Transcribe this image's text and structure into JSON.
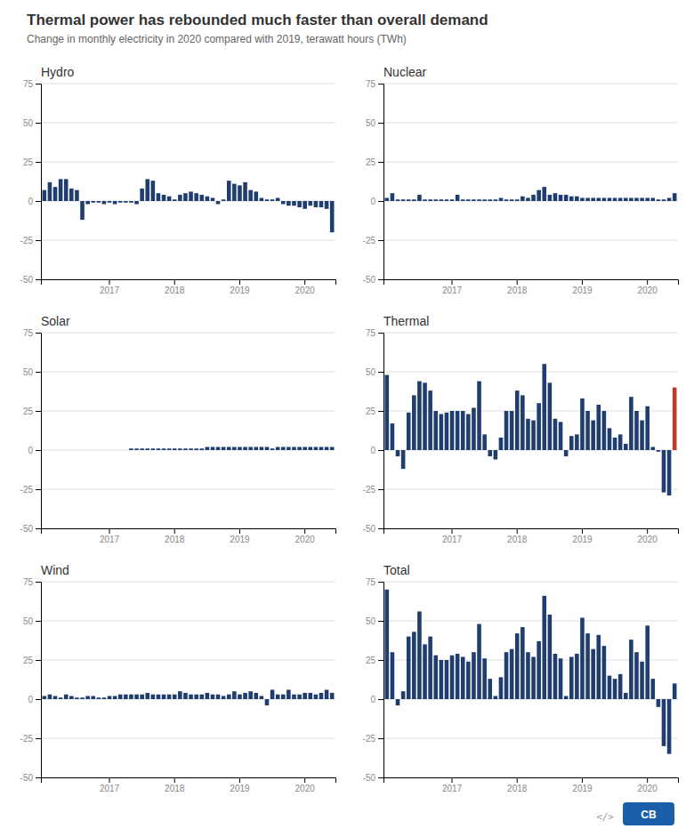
{
  "title": "Thermal power has rebounded much faster than overall demand",
  "subtitle": "Change in monthly electricity in 2020 compared with 2019, terawatt hours (TWh)",
  "annotations": [
    "</>",
    "CB"
  ],
  "chart_data": [
    {
      "type": "bar",
      "title": "Hydro",
      "categories": [
        null,
        null,
        null,
        null,
        null,
        null,
        null,
        null,
        null,
        null,
        null,
        null,
        "2017",
        null,
        null,
        null,
        null,
        null,
        null,
        null,
        null,
        null,
        null,
        null,
        "2018",
        null,
        null,
        null,
        null,
        null,
        null,
        null,
        null,
        null,
        null,
        null,
        "2019",
        null,
        null,
        null,
        null,
        null,
        null,
        null,
        null,
        null,
        null,
        null,
        "2020",
        null,
        null,
        null,
        null,
        null
      ],
      "values": [
        7,
        12,
        9,
        14,
        14,
        8,
        7,
        -12,
        -2,
        -1,
        -1,
        -2,
        -1,
        -2,
        -1,
        -1,
        -1,
        -2,
        8,
        14,
        13,
        5,
        4,
        3,
        1,
        4,
        5,
        6,
        5,
        4,
        3,
        2,
        -2,
        1,
        13,
        11,
        10,
        12,
        7,
        6,
        2,
        1,
        1,
        2,
        -2,
        -3,
        -3,
        -4,
        -5,
        -3,
        -4,
        -4,
        -5,
        -20
      ],
      "color": "#1f3d6e",
      "ylim": [
        -50,
        75
      ],
      "yticks": [
        -50,
        -25,
        0,
        25,
        50,
        75
      ],
      "grid": true
    },
    {
      "type": "bar",
      "title": "Nuclear",
      "categories": [
        null,
        null,
        null,
        null,
        null,
        null,
        null,
        null,
        null,
        null,
        null,
        null,
        "2017",
        null,
        null,
        null,
        null,
        null,
        null,
        null,
        null,
        null,
        null,
        null,
        "2018",
        null,
        null,
        null,
        null,
        null,
        null,
        null,
        null,
        null,
        null,
        null,
        "2019",
        null,
        null,
        null,
        null,
        null,
        null,
        null,
        null,
        null,
        null,
        null,
        "2020",
        null,
        null,
        null,
        null,
        null
      ],
      "values": [
        2,
        5,
        1,
        1,
        1,
        1,
        4,
        1,
        1,
        1,
        1,
        1,
        1,
        4,
        1,
        1,
        1,
        1,
        1,
        1,
        1,
        2,
        1,
        1,
        1,
        3,
        2,
        4,
        7,
        9,
        4,
        5,
        4,
        4,
        3,
        3,
        2,
        2,
        2,
        2,
        2,
        2,
        2,
        2,
        2,
        2,
        2,
        2,
        2,
        2,
        1,
        1,
        2,
        5
      ],
      "color": "#1f3d6e",
      "ylim": [
        -50,
        75
      ],
      "yticks": [
        -50,
        -25,
        0,
        25,
        50,
        75
      ],
      "grid": true
    },
    {
      "type": "bar",
      "title": "Solar",
      "categories": [
        null,
        null,
        null,
        null,
        null,
        null,
        null,
        null,
        null,
        null,
        null,
        null,
        "2017",
        null,
        null,
        null,
        null,
        null,
        null,
        null,
        null,
        null,
        null,
        null,
        "2018",
        null,
        null,
        null,
        null,
        null,
        null,
        null,
        null,
        null,
        null,
        null,
        "2019",
        null,
        null,
        null,
        null,
        null,
        null,
        null,
        null,
        null,
        null,
        null,
        "2020",
        null,
        null,
        null,
        null,
        null
      ],
      "values": [
        0,
        0,
        0,
        0,
        0,
        0,
        0,
        0,
        0,
        0,
        0,
        0,
        0,
        0,
        0,
        0,
        1,
        1,
        1,
        1,
        1,
        1,
        1,
        1,
        1,
        1,
        1,
        1,
        1,
        1,
        2,
        2,
        2,
        2,
        2,
        2,
        2,
        2,
        2,
        2,
        2,
        2,
        1,
        2,
        2,
        2,
        2,
        2,
        2,
        2,
        2,
        2,
        2,
        2
      ],
      "color": "#1f3d6e",
      "ylim": [
        -50,
        75
      ],
      "yticks": [
        -50,
        -25,
        0,
        25,
        50,
        75
      ],
      "grid": true
    },
    {
      "type": "bar",
      "title": "Thermal",
      "categories": [
        null,
        null,
        null,
        null,
        null,
        null,
        null,
        null,
        null,
        null,
        null,
        null,
        "2017",
        null,
        null,
        null,
        null,
        null,
        null,
        null,
        null,
        null,
        null,
        null,
        "2018",
        null,
        null,
        null,
        null,
        null,
        null,
        null,
        null,
        null,
        null,
        null,
        "2019",
        null,
        null,
        null,
        null,
        null,
        null,
        null,
        null,
        null,
        null,
        null,
        "2020",
        null,
        null,
        null,
        null,
        null
      ],
      "values": [
        48,
        17,
        -4,
        -12,
        24,
        35,
        44,
        43,
        38,
        25,
        23,
        24,
        25,
        25,
        25,
        23,
        27,
        44,
        10,
        -4,
        -6,
        8,
        25,
        25,
        38,
        35,
        20,
        19,
        30,
        55,
        43,
        20,
        18,
        -4,
        9,
        10,
        33,
        25,
        19,
        29,
        25,
        14,
        8,
        10,
        4,
        34,
        25,
        19,
        28,
        2,
        -1,
        -27,
        -29,
        40
      ],
      "colors": [
        "#1f3d6e",
        "#1f3d6e",
        "#1f3d6e",
        "#1f3d6e",
        "#1f3d6e",
        "#1f3d6e",
        "#1f3d6e",
        "#1f3d6e",
        "#1f3d6e",
        "#1f3d6e",
        "#1f3d6e",
        "#1f3d6e",
        "#1f3d6e",
        "#1f3d6e",
        "#1f3d6e",
        "#1f3d6e",
        "#1f3d6e",
        "#1f3d6e",
        "#1f3d6e",
        "#1f3d6e",
        "#1f3d6e",
        "#1f3d6e",
        "#1f3d6e",
        "#1f3d6e",
        "#1f3d6e",
        "#1f3d6e",
        "#1f3d6e",
        "#1f3d6e",
        "#1f3d6e",
        "#1f3d6e",
        "#1f3d6e",
        "#1f3d6e",
        "#1f3d6e",
        "#1f3d6e",
        "#1f3d6e",
        "#1f3d6e",
        "#1f3d6e",
        "#1f3d6e",
        "#1f3d6e",
        "#1f3d6e",
        "#1f3d6e",
        "#1f3d6e",
        "#1f3d6e",
        "#1f3d6e",
        "#1f3d6e",
        "#1f3d6e",
        "#1f3d6e",
        "#1f3d6e",
        "#1f3d6e",
        "#1f3d6e",
        "#1f3d6e",
        "#1f3d6e",
        "#1f3d6e",
        "#c0392b"
      ],
      "ylim": [
        -50,
        75
      ],
      "yticks": [
        -50,
        -25,
        0,
        25,
        50,
        75
      ],
      "grid": true
    },
    {
      "type": "bar",
      "title": "Wind",
      "categories": [
        null,
        null,
        null,
        null,
        null,
        null,
        null,
        null,
        null,
        null,
        null,
        null,
        "2017",
        null,
        null,
        null,
        null,
        null,
        null,
        null,
        null,
        null,
        null,
        null,
        "2018",
        null,
        null,
        null,
        null,
        null,
        null,
        null,
        null,
        null,
        null,
        null,
        "2019",
        null,
        null,
        null,
        null,
        null,
        null,
        null,
        null,
        null,
        null,
        null,
        "2020",
        null,
        null,
        null,
        null,
        null
      ],
      "values": [
        2,
        3,
        2,
        1,
        3,
        2,
        1,
        1,
        2,
        2,
        1,
        1,
        2,
        2,
        3,
        3,
        3,
        3,
        3,
        4,
        3,
        3,
        3,
        3,
        3,
        5,
        4,
        3,
        3,
        3,
        4,
        3,
        3,
        2,
        3,
        5,
        3,
        4,
        5,
        4,
        2,
        -4,
        6,
        3,
        3,
        6,
        3,
        3,
        4,
        4,
        3,
        4,
        6,
        4
      ],
      "color": "#1f3d6e",
      "ylim": [
        -50,
        75
      ],
      "yticks": [
        -50,
        -25,
        0,
        25,
        50,
        75
      ],
      "grid": true
    },
    {
      "type": "bar",
      "title": "Total",
      "categories": [
        null,
        null,
        null,
        null,
        null,
        null,
        null,
        null,
        null,
        null,
        null,
        null,
        "2017",
        null,
        null,
        null,
        null,
        null,
        null,
        null,
        null,
        null,
        null,
        null,
        "2018",
        null,
        null,
        null,
        null,
        null,
        null,
        null,
        null,
        null,
        null,
        null,
        "2019",
        null,
        null,
        null,
        null,
        null,
        null,
        null,
        null,
        null,
        null,
        null,
        "2020",
        null,
        null,
        null,
        null,
        null
      ],
      "values": [
        70,
        30,
        -4,
        5,
        40,
        43,
        56,
        35,
        40,
        28,
        25,
        25,
        28,
        29,
        27,
        24,
        30,
        48,
        26,
        13,
        2,
        14,
        30,
        32,
        42,
        46,
        30,
        27,
        37,
        66,
        54,
        29,
        26,
        2,
        27,
        29,
        52,
        42,
        32,
        41,
        34,
        15,
        13,
        16,
        4,
        38,
        30,
        24,
        47,
        13,
        -5,
        -30,
        -35,
        10
      ],
      "color": "#1f3d6e",
      "ylim": [
        -50,
        75
      ],
      "yticks": [
        -50,
        -25,
        0,
        25,
        50,
        75
      ],
      "grid": true
    }
  ]
}
